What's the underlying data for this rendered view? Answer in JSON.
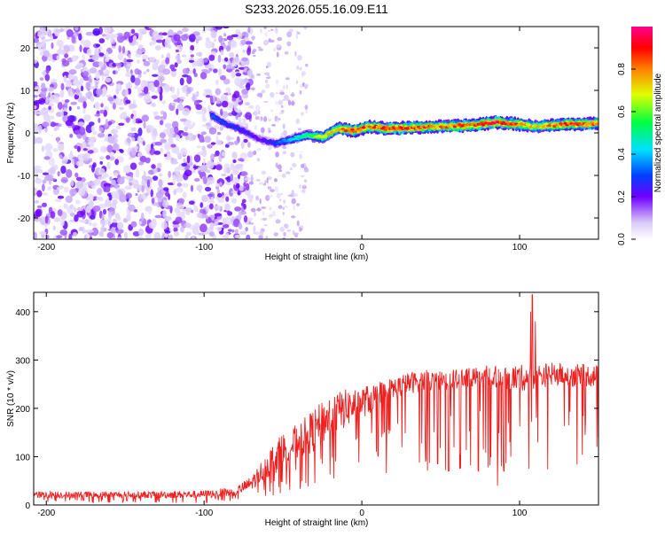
{
  "title": "S233.2026.055.16.09.E11",
  "chart_data": [
    {
      "type": "heatmap",
      "name": "spectrogram",
      "xlabel": "Height of straight line (km)",
      "ylabel": "Frequency (Hz)",
      "xlim": [
        -208,
        150
      ],
      "ylim": [
        -25,
        25
      ],
      "xticks": [
        -200,
        -100,
        0,
        100
      ],
      "yticks": [
        20,
        10,
        0,
        -10,
        -20
      ],
      "noise_region": {
        "x_from": -208,
        "x_to": -70,
        "sparse_to": -35
      },
      "ridge": {
        "x": [
          -95,
          -85,
          -75,
          -65,
          -55,
          -45,
          -35,
          -25,
          -15,
          -5,
          5,
          15,
          30,
          50,
          70,
          85,
          100,
          110,
          130,
          150
        ],
        "freq": [
          4,
          2,
          0.5,
          -1.5,
          -2.5,
          -1.5,
          -0.5,
          -1,
          1,
          0.5,
          1.5,
          1,
          1.2,
          1.5,
          1.8,
          2.5,
          2,
          1.5,
          2,
          2.2
        ],
        "amplitude": [
          0.35,
          0.3,
          0.28,
          0.22,
          0.3,
          0.45,
          0.55,
          0.7,
          0.8,
          0.9,
          0.85,
          0.92,
          0.88,
          0.82,
          0.9,
          0.95,
          0.85,
          0.75,
          0.9,
          0.85
        ]
      },
      "colorbar": {
        "label": "Normalized spectral amplitude",
        "range": [
          0,
          1
        ],
        "ticks": [
          "0.0",
          "0.2",
          "0.4",
          "0.6",
          "0.8"
        ]
      }
    },
    {
      "type": "line",
      "name": "snr",
      "xlabel": "Height of straight line (km)",
      "ylabel": "SNR (10 * v/v)",
      "xlim": [
        -208,
        150
      ],
      "ylim": [
        0,
        440
      ],
      "xticks": [
        -200,
        -100,
        0,
        100
      ],
      "yticks": [
        0,
        100,
        200,
        300,
        400
      ],
      "color": "#ee2020",
      "envelope": {
        "x": [
          -208,
          -150,
          -100,
          -80,
          -70,
          -60,
          -50,
          -40,
          -30,
          -20,
          -10,
          0,
          10,
          20,
          30,
          40,
          60,
          80,
          100,
          120,
          150
        ],
        "base": [
          14,
          14,
          14,
          18,
          30,
          55,
          75,
          95,
          110,
          140,
          160,
          180,
          195,
          215,
          230,
          235,
          240,
          245,
          235,
          245,
          245
        ],
        "peak": [
          28,
          28,
          30,
          38,
          60,
          110,
          150,
          170,
          200,
          230,
          240,
          245,
          255,
          265,
          275,
          280,
          280,
          290,
          290,
          295,
          290
        ]
      },
      "dips": [
        {
          "x": 48,
          "value": 85
        },
        {
          "x": 55,
          "value": 70
        },
        {
          "x": 62,
          "value": 75
        },
        {
          "x": 68,
          "value": 72
        },
        {
          "x": 74,
          "value": 70
        },
        {
          "x": 80,
          "value": 78
        },
        {
          "x": 86,
          "value": 40
        },
        {
          "x": 90,
          "value": 70
        },
        {
          "x": 108,
          "value": 75
        }
      ],
      "spikes": [
        {
          "x": 108,
          "value": 435
        },
        {
          "x": 107,
          "value": 400
        },
        {
          "x": 110,
          "value": 380
        }
      ]
    }
  ]
}
